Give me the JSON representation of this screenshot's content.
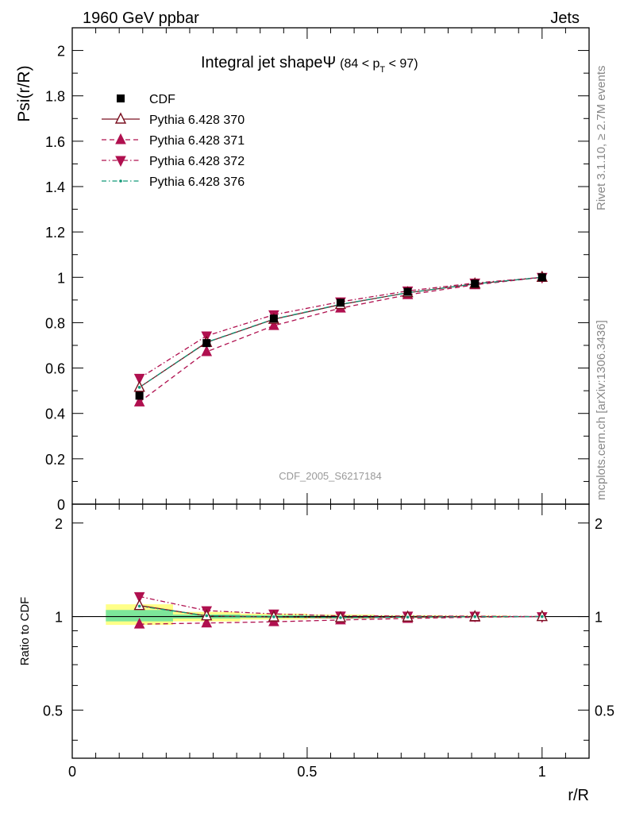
{
  "header": {
    "left": "1960 GeV ppbar",
    "right": "Jets"
  },
  "side_labels": {
    "rivet": "Rivet 3.1.10, ≥ 2.7M events",
    "mcplots": "mcplots.cern.ch [arXiv:1306.3436]"
  },
  "watermark": "CDF_2005_S6217184",
  "chart_data": [
    {
      "type": "line",
      "title": "Integral jet shapeΨ (84 < p_T < 97)",
      "title_main": "Integral jet shape",
      "title_symbol": "Ψ",
      "title_range_pre": "(84 < p",
      "title_range_sub": "T",
      "title_range_post": " < 97)",
      "ylabel": "Psi(r/R)",
      "xlim": [
        0,
        1.1
      ],
      "ylim": [
        0,
        2.1
      ],
      "y_ticks": [
        0,
        0.2,
        0.4,
        0.6,
        0.8,
        1,
        1.2,
        1.4,
        1.6,
        1.8,
        2
      ],
      "y_tick_labels": [
        "0",
        "0.2",
        "0.4",
        "0.6",
        "0.8",
        "1",
        "1.2",
        "1.4",
        "1.6",
        "1.8",
        "2"
      ],
      "legend_position": "top-left",
      "x": [
        0.143,
        0.286,
        0.429,
        0.571,
        0.714,
        0.857,
        1.0
      ],
      "series": [
        {
          "name": "CDF",
          "values": [
            0.478,
            0.71,
            0.818,
            0.888,
            0.936,
            0.972,
            1.0
          ],
          "color": "#000000",
          "marker": "square-filled",
          "line": "none"
        },
        {
          "name": "Pythia 6.428 370",
          "values": [
            0.515,
            0.713,
            0.815,
            0.88,
            0.932,
            0.971,
            1.0
          ],
          "color": "#7a1020",
          "marker": "triangle-up-open",
          "line": "solid"
        },
        {
          "name": "Pythia 6.428 371",
          "values": [
            0.45,
            0.672,
            0.787,
            0.864,
            0.923,
            0.967,
            1.0
          ],
          "color": "#b0104f",
          "marker": "triangle-up-filled",
          "line": "dashed"
        },
        {
          "name": "Pythia 6.428 372",
          "values": [
            0.555,
            0.742,
            0.835,
            0.892,
            0.94,
            0.975,
            1.0
          ],
          "color": "#b0104f",
          "marker": "triangle-down-filled",
          "line": "dashdot"
        },
        {
          "name": "Pythia 6.428 376",
          "values": [
            0.515,
            0.714,
            0.816,
            0.881,
            0.932,
            0.971,
            1.0
          ],
          "color": "#119977",
          "marker": "dot",
          "line": "dashdot"
        }
      ]
    },
    {
      "type": "line",
      "ylabel": "Ratio to CDF",
      "xlabel": "r/R",
      "xlim": [
        0,
        1.1
      ],
      "ylim": [
        0.35,
        2.3
      ],
      "y_scale": "log",
      "y_ticks": [
        0.5,
        1,
        2
      ],
      "y_tick_labels": [
        "0.5",
        "1",
        "2"
      ],
      "x_ticks": [
        0,
        0.5,
        1
      ],
      "x_tick_labels": [
        "0",
        "0.5",
        "1"
      ],
      "x": [
        0.143,
        0.286,
        0.429,
        0.571,
        0.714,
        0.857,
        1.0
      ],
      "band_bins": [
        [
          0.0715,
          0.2145
        ],
        [
          0.2145,
          0.3575
        ],
        [
          0.3575,
          0.5005
        ],
        [
          0.5005,
          0.6435
        ],
        [
          0.6435,
          0.7865
        ],
        [
          0.7865,
          0.9295
        ]
      ],
      "band_yellow": [
        [
          0.94,
          1.095
        ],
        [
          0.965,
          1.035
        ],
        [
          0.978,
          1.022
        ],
        [
          0.985,
          1.015
        ],
        [
          0.99,
          1.01
        ],
        [
          0.993,
          1.007
        ]
      ],
      "band_green": [
        [
          0.965,
          1.05
        ],
        [
          0.985,
          1.015
        ],
        [
          0.99,
          1.01
        ],
        [
          0.993,
          1.007
        ],
        [
          0.995,
          1.005
        ],
        [
          0.997,
          1.003
        ]
      ],
      "series": [
        {
          "name": "Pythia 6.428 370",
          "values": [
            1.085,
            1.005,
            0.997,
            0.991,
            0.996,
            0.999,
            1.0
          ],
          "color": "#7a1020",
          "marker": "triangle-up-open",
          "line": "solid"
        },
        {
          "name": "Pythia 6.428 371",
          "values": [
            0.945,
            0.953,
            0.962,
            0.975,
            0.986,
            0.995,
            1.0
          ],
          "color": "#b0104f",
          "marker": "triangle-up-filled",
          "line": "dashed"
        },
        {
          "name": "Pythia 6.428 372",
          "values": [
            1.16,
            1.045,
            1.02,
            1.005,
            1.004,
            1.003,
            1.0
          ],
          "color": "#b0104f",
          "marker": "triangle-down-filled",
          "line": "dashdot"
        },
        {
          "name": "Pythia 6.428 376",
          "values": [
            1.08,
            1.006,
            0.998,
            0.992,
            0.996,
            0.999,
            1.0
          ],
          "color": "#119977",
          "marker": "dot",
          "line": "dashdot"
        }
      ]
    }
  ]
}
